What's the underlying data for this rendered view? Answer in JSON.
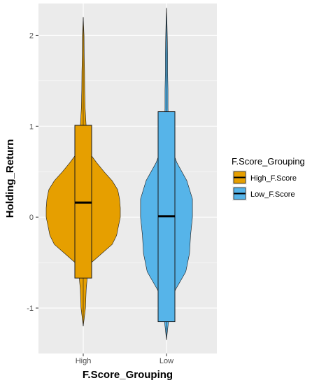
{
  "chart_data": {
    "type": "violin+boxplot",
    "xlabel": "F.Score_Grouping",
    "ylabel": "Holding_Return",
    "ylim": [
      -1.5,
      2.35
    ],
    "yticks": [
      -1,
      0,
      1,
      2
    ],
    "yticklabels": [
      "-1",
      "0",
      "1",
      "2"
    ],
    "categories": [
      "High",
      "Low"
    ],
    "legend": {
      "title": "F.Score_Grouping",
      "position": "right",
      "entries": [
        "High_F.Score",
        "Low_F.Score"
      ]
    },
    "colors": {
      "High": "#E69F00",
      "Low": "#56B4E9",
      "panel": "#EBEBEB",
      "grid": "#FFFFFF"
    },
    "series": [
      {
        "category": "High",
        "box": {
          "lower_whisker": -1.2,
          "q1": -0.67,
          "median": 0.16,
          "q3": 1.01,
          "upper_whisker": 2.2
        },
        "violin_profile": [
          [
            -1.2,
            0.0
          ],
          [
            -1.0,
            0.06
          ],
          [
            -0.8,
            0.08
          ],
          [
            -0.6,
            0.12
          ],
          [
            -0.5,
            0.22
          ],
          [
            -0.4,
            0.5
          ],
          [
            -0.3,
            0.78
          ],
          [
            -0.2,
            0.9
          ],
          [
            -0.1,
            0.95
          ],
          [
            0.0,
            1.0
          ],
          [
            0.1,
            1.0
          ],
          [
            0.2,
            0.98
          ],
          [
            0.3,
            0.93
          ],
          [
            0.4,
            0.78
          ],
          [
            0.5,
            0.56
          ],
          [
            0.6,
            0.36
          ],
          [
            0.7,
            0.18
          ],
          [
            0.8,
            0.1
          ],
          [
            1.0,
            0.08
          ],
          [
            1.2,
            0.05
          ],
          [
            1.4,
            0.04
          ],
          [
            1.6,
            0.035
          ],
          [
            1.8,
            0.025
          ],
          [
            2.0,
            0.02
          ],
          [
            2.2,
            0.0
          ]
        ]
      },
      {
        "category": "Low",
        "box": {
          "lower_whisker": -1.35,
          "q1": -1.15,
          "median": 0.01,
          "q3": 1.16,
          "upper_whisker": 2.3
        },
        "violin_profile": [
          [
            -1.35,
            0.0
          ],
          [
            -1.2,
            0.04
          ],
          [
            -1.0,
            0.1
          ],
          [
            -0.8,
            0.24
          ],
          [
            -0.6,
            0.52
          ],
          [
            -0.4,
            0.62
          ],
          [
            -0.2,
            0.65
          ],
          [
            0.0,
            0.7
          ],
          [
            0.2,
            0.7
          ],
          [
            0.4,
            0.55
          ],
          [
            0.6,
            0.28
          ],
          [
            0.8,
            0.1
          ],
          [
            1.0,
            0.05
          ],
          [
            1.2,
            0.04
          ],
          [
            1.4,
            0.04
          ],
          [
            1.6,
            0.03
          ],
          [
            1.8,
            0.03
          ],
          [
            2.0,
            0.02
          ],
          [
            2.2,
            0.01
          ],
          [
            2.3,
            0.0
          ]
        ]
      }
    ]
  }
}
